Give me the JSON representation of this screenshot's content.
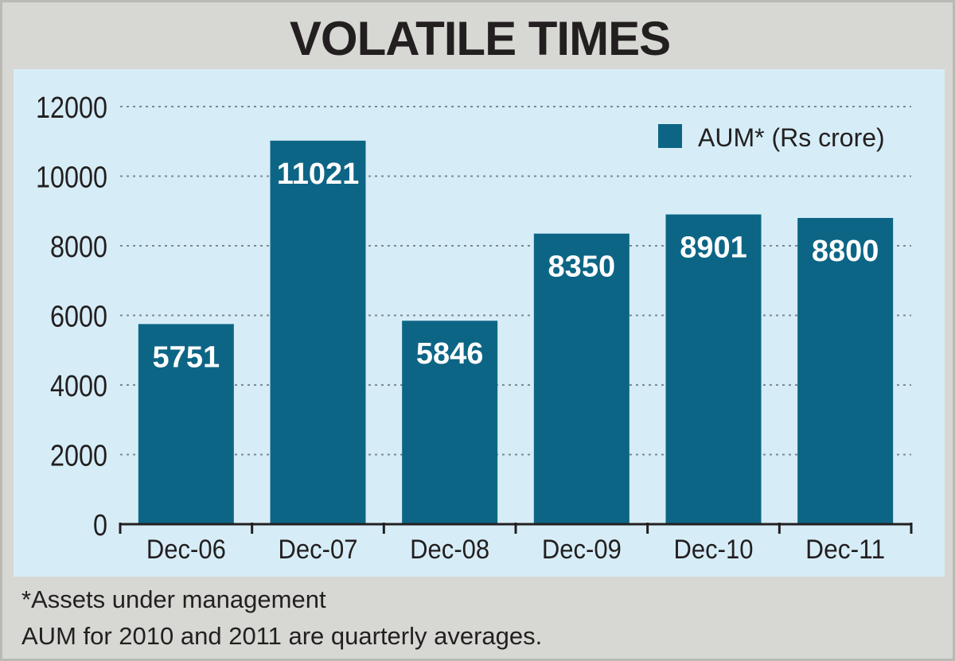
{
  "chart_data": {
    "type": "bar",
    "title": "VOLATILE TIMES",
    "categories": [
      "Dec-06",
      "Dec-07",
      "Dec-08",
      "Dec-09",
      "Dec-10",
      "Dec-11"
    ],
    "series": [
      {
        "name": "AUM* (Rs crore)",
        "values": [
          5751,
          11021,
          5846,
          8350,
          8901,
          8800
        ]
      }
    ],
    "data_labels": [
      "5751",
      "11021",
      "5846",
      "8350",
      "8901",
      "8800"
    ],
    "yticks": [
      0,
      2000,
      4000,
      6000,
      8000,
      10000,
      12000
    ],
    "ylim": [
      0,
      12000
    ],
    "xlabel": "",
    "ylabel": "",
    "grid": "horizontal dotted",
    "legend_position": "top-right",
    "colors": {
      "bar": "#0d6585",
      "panel_background": "#d6edf7",
      "frame_background": "#d7d7d3",
      "text": "#231f20",
      "grid": "#7a8a90"
    }
  },
  "footnotes": {
    "line1": "*Assets under management",
    "line2": "AUM for 2010 and 2011 are quarterly averages."
  }
}
